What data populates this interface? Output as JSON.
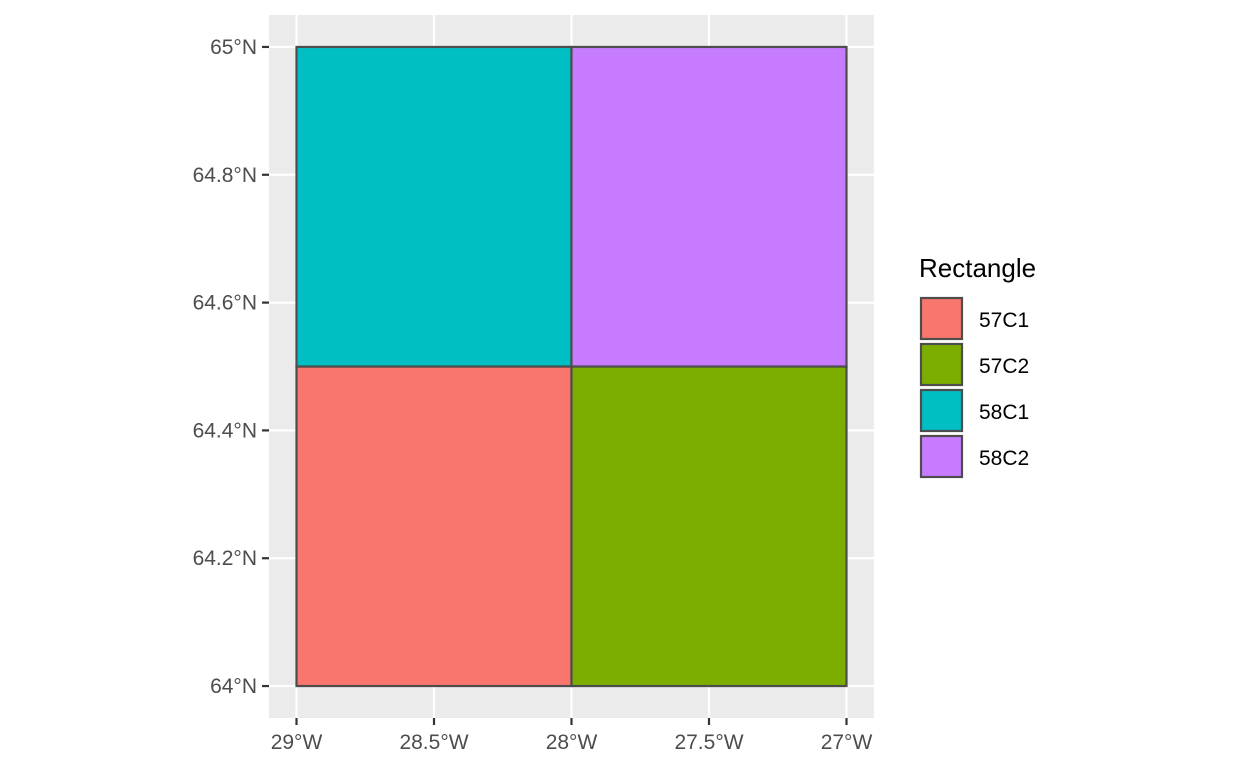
{
  "chart_data": {
    "type": "map",
    "title": "",
    "xlabel": "",
    "ylabel": "",
    "xlim": [
      -29.1,
      -26.9
    ],
    "ylim": [
      63.95,
      65.05
    ],
    "grid": true,
    "x_ticks": [
      {
        "value": -29.0,
        "label": "29°W"
      },
      {
        "value": -28.5,
        "label": "28.5°W"
      },
      {
        "value": -28.0,
        "label": "28°W"
      },
      {
        "value": -27.5,
        "label": "27.5°W"
      },
      {
        "value": -27.0,
        "label": "27°W"
      }
    ],
    "y_ticks": [
      {
        "value": 64.0,
        "label": "64°N"
      },
      {
        "value": 64.2,
        "label": "64.2°N"
      },
      {
        "value": 64.4,
        "label": "64.4°N"
      },
      {
        "value": 64.6,
        "label": "64.6°N"
      },
      {
        "value": 64.8,
        "label": "64.8°N"
      },
      {
        "value": 65.0,
        "label": "65°N"
      }
    ],
    "legend": {
      "title": "Rectangle",
      "placement": "right"
    },
    "rectangles": [
      {
        "name": "57C1",
        "lon": [
          -29.0,
          -28.0
        ],
        "lat": [
          64.0,
          64.5
        ],
        "color": "#F8766D"
      },
      {
        "name": "57C2",
        "lon": [
          -28.0,
          -27.0
        ],
        "lat": [
          64.0,
          64.5
        ],
        "color": "#7CAE00"
      },
      {
        "name": "58C1",
        "lon": [
          -29.0,
          -28.0
        ],
        "lat": [
          64.5,
          65.0
        ],
        "color": "#00BFC4"
      },
      {
        "name": "58C2",
        "lon": [
          -28.0,
          -27.0
        ],
        "lat": [
          64.5,
          65.0
        ],
        "color": "#C77CFF"
      }
    ]
  },
  "colors": {
    "panel_background": "#EBEBEB",
    "grid": "#FFFFFF",
    "outline": "#4D4D4D",
    "tick": "#333333"
  }
}
